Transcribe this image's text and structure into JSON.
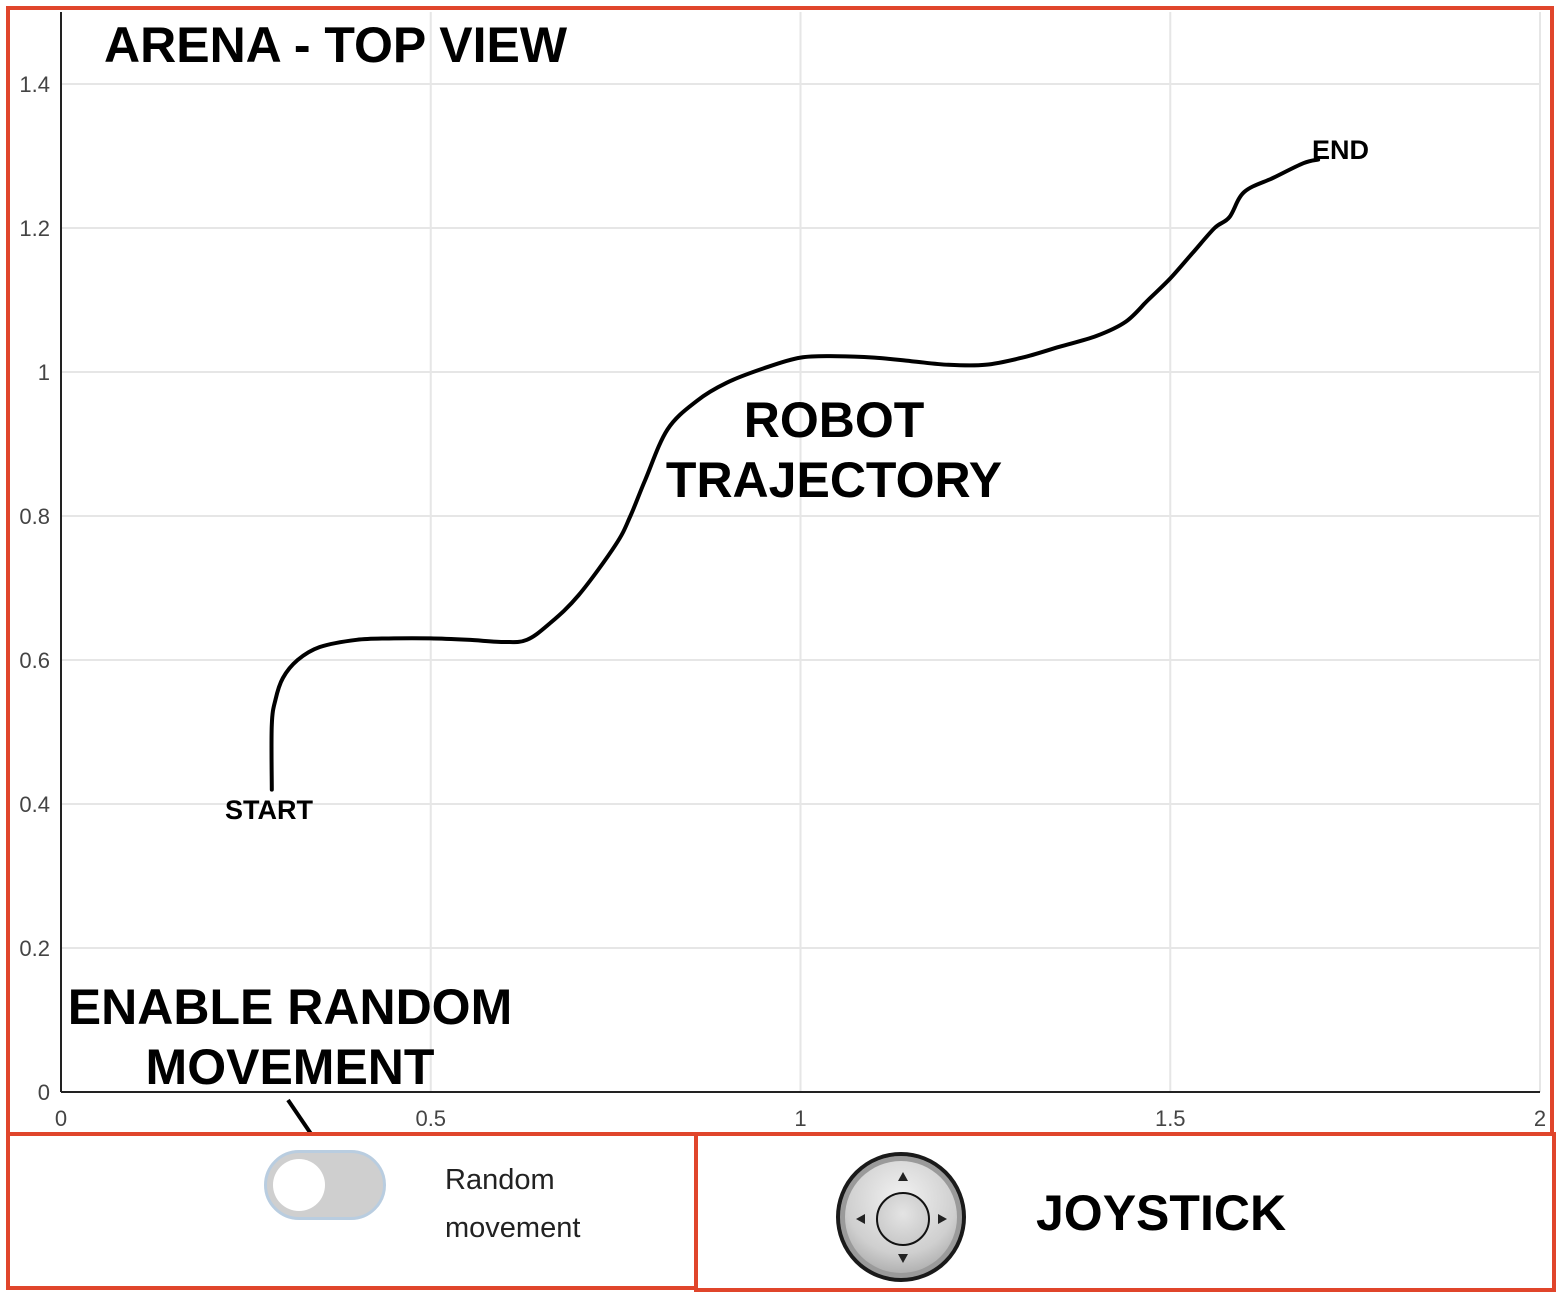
{
  "arena": {
    "title": "ARENA - TOP VIEW",
    "trajectory_label_line1": "ROBOT",
    "trajectory_label_line2": "TRAJECTORY",
    "start_label": "START",
    "end_label": "END"
  },
  "controls": {
    "enable_label_line1": "ENABLE RANDOM",
    "enable_label_line2": "MOVEMENT",
    "toggle_label_line1": "Random",
    "toggle_label_line2": "movement",
    "toggle_on": false,
    "joystick_title": "JOYSTICK"
  },
  "colors": {
    "panel_border": "#e0452b",
    "trajectory": "#000000",
    "grid": "#e6e6e6"
  },
  "chart_data": {
    "type": "line",
    "title": "ARENA - TOP VIEW",
    "xlabel": "",
    "ylabel": "",
    "xlim": [
      0,
      2
    ],
    "ylim": [
      0,
      1.5
    ],
    "x_ticks": [
      "0",
      "0.5",
      "1",
      "1.5",
      "2"
    ],
    "y_ticks": [
      "0",
      "0.2",
      "0.4",
      "0.6",
      "0.8",
      "1",
      "1.2",
      "1.4"
    ],
    "grid": true,
    "series": [
      {
        "x": [
          0.285,
          0.285,
          0.29,
          0.3,
          0.32,
          0.35,
          0.4,
          0.45,
          0.5,
          0.55,
          0.6,
          0.63,
          0.66,
          0.7,
          0.75,
          0.77,
          0.79,
          0.82,
          0.86,
          0.9,
          0.95,
          1.0,
          1.05,
          1.1,
          1.15,
          1.2,
          1.25,
          1.3,
          1.35,
          1.4,
          1.44,
          1.47,
          1.5,
          1.53,
          1.56,
          1.58,
          1.6,
          1.64,
          1.68,
          1.7
        ],
        "y": [
          0.42,
          0.51,
          0.545,
          0.575,
          0.6,
          0.618,
          0.628,
          0.63,
          0.63,
          0.628,
          0.625,
          0.628,
          0.65,
          0.69,
          0.76,
          0.8,
          0.85,
          0.92,
          0.96,
          0.985,
          1.005,
          1.02,
          1.022,
          1.02,
          1.015,
          1.01,
          1.01,
          1.02,
          1.035,
          1.05,
          1.07,
          1.1,
          1.13,
          1.165,
          1.2,
          1.215,
          1.25,
          1.27,
          1.29,
          1.295
        ]
      }
    ],
    "annotations": [
      "START",
      "END",
      "ROBOT",
      "TRAJECTORY"
    ]
  }
}
